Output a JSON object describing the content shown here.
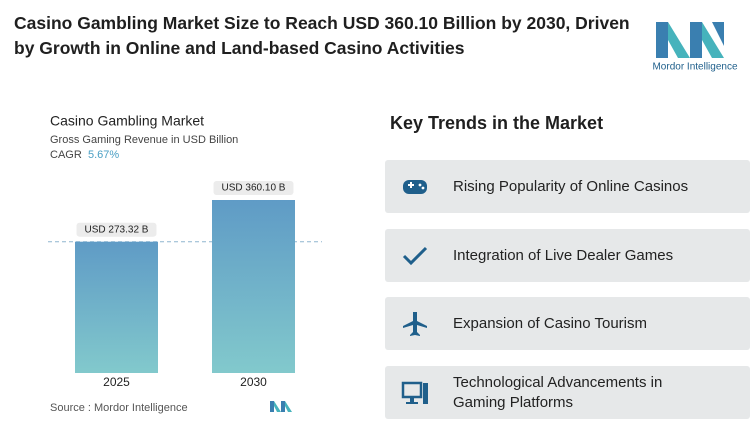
{
  "header": {
    "title": "Casino Gambling Market Size to Reach USD 360.10 Billion by 2030, Driven by Growth in Online and Land-based Casino Activities",
    "logo": "Mordor Intelligence"
  },
  "chart_data": {
    "type": "bar",
    "title": "Casino Gambling Market",
    "subtitle": "Gross Gaming Revenue in USD Billion",
    "cagr_label": "CAGR",
    "cagr": "5.67%",
    "categories": [
      "2025",
      "2030"
    ],
    "values": [
      273.32,
      360.1
    ],
    "value_labels": [
      "USD 273.32 B",
      "USD 360.10 B"
    ],
    "color": [
      "#5f9bc6",
      "#82c9cc"
    ],
    "source": "Source : Mordor Intelligence"
  },
  "trends": {
    "title": "Key Trends in the Market",
    "items": [
      "Rising Popularity of Online Casinos",
      "Integration of Live Dealer Games",
      "Expansion of Casino Tourism",
      "Technological Advancements in Gaming Platforms"
    ]
  }
}
